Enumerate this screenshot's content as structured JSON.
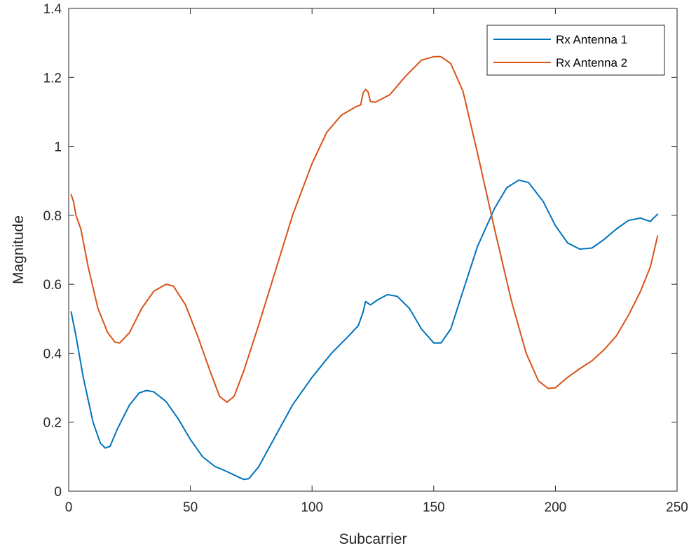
{
  "chart_data": {
    "type": "line",
    "title": "",
    "xlabel": "Subcarrier",
    "ylabel": "Magnitude",
    "xlim": [
      0,
      250
    ],
    "ylim": [
      0,
      1.4
    ],
    "xticks": [
      0,
      50,
      100,
      150,
      200,
      250
    ],
    "yticks": [
      0,
      0.2,
      0.4,
      0.6,
      0.8,
      1,
      1.2,
      1.4
    ],
    "xtick_labels": [
      "0",
      "50",
      "100",
      "150",
      "200",
      "250"
    ],
    "ytick_labels": [
      "0",
      "0.2",
      "0.4",
      "0.6",
      "0.8",
      "1",
      "1.2",
      "1.4"
    ],
    "grid": false,
    "legend_position": "top-right",
    "series": [
      {
        "name": "Rx Antenna 1",
        "color": "#0072BD",
        "points": [
          [
            1,
            0.52
          ],
          [
            3,
            0.45
          ],
          [
            6,
            0.33
          ],
          [
            10,
            0.2
          ],
          [
            13,
            0.14
          ],
          [
            15,
            0.125
          ],
          [
            17,
            0.13
          ],
          [
            20,
            0.18
          ],
          [
            25,
            0.25
          ],
          [
            29,
            0.285
          ],
          [
            32,
            0.292
          ],
          [
            35,
            0.288
          ],
          [
            40,
            0.26
          ],
          [
            45,
            0.21
          ],
          [
            50,
            0.15
          ],
          [
            55,
            0.1
          ],
          [
            60,
            0.072
          ],
          [
            65,
            0.057
          ],
          [
            70,
            0.04
          ],
          [
            72,
            0.034
          ],
          [
            74,
            0.036
          ],
          [
            78,
            0.07
          ],
          [
            85,
            0.16
          ],
          [
            92,
            0.25
          ],
          [
            100,
            0.33
          ],
          [
            108,
            0.4
          ],
          [
            115,
            0.45
          ],
          [
            119,
            0.48
          ],
          [
            121,
            0.52
          ],
          [
            122,
            0.55
          ],
          [
            123,
            0.545
          ],
          [
            124,
            0.54
          ],
          [
            127,
            0.555
          ],
          [
            131,
            0.57
          ],
          [
            135,
            0.565
          ],
          [
            140,
            0.53
          ],
          [
            145,
            0.47
          ],
          [
            150,
            0.43
          ],
          [
            153,
            0.43
          ],
          [
            157,
            0.47
          ],
          [
            162,
            0.58
          ],
          [
            168,
            0.71
          ],
          [
            175,
            0.82
          ],
          [
            180,
            0.88
          ],
          [
            185,
            0.902
          ],
          [
            189,
            0.895
          ],
          [
            195,
            0.84
          ],
          [
            200,
            0.77
          ],
          [
            205,
            0.72
          ],
          [
            210,
            0.702
          ],
          [
            215,
            0.705
          ],
          [
            220,
            0.73
          ],
          [
            225,
            0.76
          ],
          [
            230,
            0.785
          ],
          [
            235,
            0.792
          ],
          [
            239,
            0.782
          ],
          [
            240,
            0.79
          ],
          [
            242,
            0.803
          ]
        ]
      },
      {
        "name": "Rx Antenna 2",
        "color": "#D95319",
        "points": [
          [
            1,
            0.86
          ],
          [
            2,
            0.84
          ],
          [
            3,
            0.8
          ],
          [
            5,
            0.76
          ],
          [
            8,
            0.65
          ],
          [
            12,
            0.53
          ],
          [
            16,
            0.46
          ],
          [
            19,
            0.432
          ],
          [
            21,
            0.43
          ],
          [
            25,
            0.46
          ],
          [
            30,
            0.53
          ],
          [
            35,
            0.58
          ],
          [
            40,
            0.6
          ],
          [
            43,
            0.595
          ],
          [
            48,
            0.54
          ],
          [
            53,
            0.45
          ],
          [
            58,
            0.35
          ],
          [
            62,
            0.275
          ],
          [
            65,
            0.258
          ],
          [
            68,
            0.275
          ],
          [
            72,
            0.35
          ],
          [
            78,
            0.48
          ],
          [
            85,
            0.64
          ],
          [
            92,
            0.8
          ],
          [
            100,
            0.95
          ],
          [
            106,
            1.04
          ],
          [
            112,
            1.09
          ],
          [
            118,
            1.115
          ],
          [
            120,
            1.12
          ],
          [
            121,
            1.155
          ],
          [
            122,
            1.165
          ],
          [
            123,
            1.158
          ],
          [
            124,
            1.13
          ],
          [
            126,
            1.128
          ],
          [
            132,
            1.15
          ],
          [
            138,
            1.2
          ],
          [
            145,
            1.25
          ],
          [
            150,
            1.26
          ],
          [
            153,
            1.26
          ],
          [
            157,
            1.24
          ],
          [
            162,
            1.16
          ],
          [
            168,
            0.98
          ],
          [
            175,
            0.76
          ],
          [
            182,
            0.55
          ],
          [
            188,
            0.4
          ],
          [
            193,
            0.32
          ],
          [
            197,
            0.298
          ],
          [
            200,
            0.3
          ],
          [
            205,
            0.33
          ],
          [
            210,
            0.355
          ],
          [
            215,
            0.378
          ],
          [
            220,
            0.41
          ],
          [
            225,
            0.45
          ],
          [
            230,
            0.51
          ],
          [
            235,
            0.58
          ],
          [
            239,
            0.65
          ],
          [
            242,
            0.74
          ]
        ]
      }
    ]
  }
}
